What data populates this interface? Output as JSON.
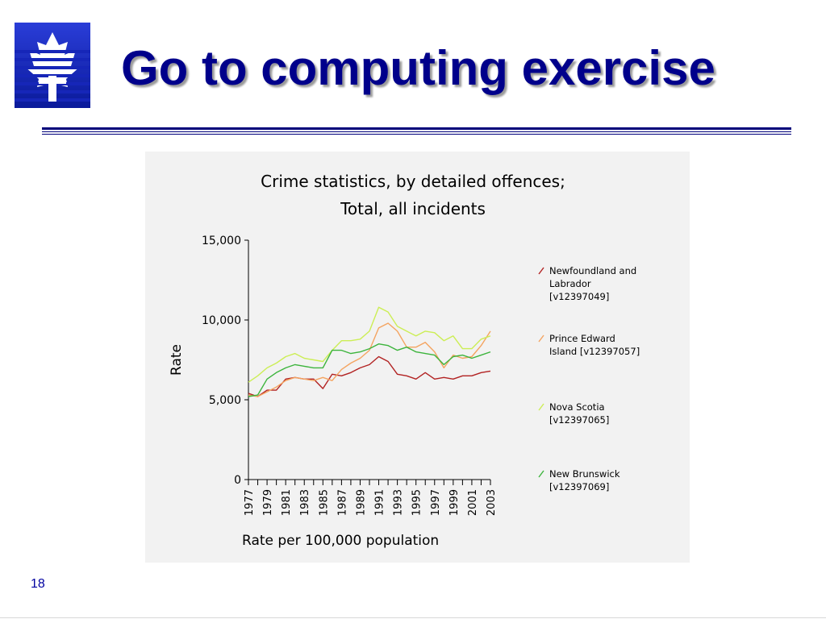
{
  "slide": {
    "title": "Go to computing exercise",
    "page_number": "18",
    "logo_icon": "maple-leaf-logo-icon",
    "title_color": "#00008B"
  },
  "chart_data": {
    "type": "line",
    "title_lines": [
      "Crime statistics, by detailed offences;",
      "Total, all incidents"
    ],
    "ylabel": "Rate",
    "xlabel": "Rate per 100,000 population",
    "ylim": [
      0,
      15000
    ],
    "yticks": [
      0,
      5000,
      10000,
      15000
    ],
    "ytick_labels": [
      "0",
      "5,000",
      "10,000",
      "15,000"
    ],
    "x": [
      1977,
      1978,
      1979,
      1980,
      1981,
      1982,
      1983,
      1984,
      1985,
      1986,
      1987,
      1988,
      1989,
      1990,
      1991,
      1992,
      1993,
      1994,
      1995,
      1996,
      1997,
      1998,
      1999,
      2000,
      2001,
      2002,
      2003
    ],
    "xtick_labels": [
      "1977",
      "1979",
      "1981",
      "1983",
      "1985",
      "1987",
      "1989",
      "1991",
      "1993",
      "1995",
      "1997",
      "1999",
      "2001",
      "2003"
    ],
    "grid": false,
    "legend_position": "right",
    "series": [
      {
        "name_lines": [
          "Newfoundland and",
          "Labrador",
          "[v12397049]"
        ],
        "color": "#b22222",
        "values": [
          5400,
          5200,
          5600,
          5600,
          6300,
          6400,
          6300,
          6300,
          5700,
          6600,
          6500,
          6700,
          7000,
          7200,
          7700,
          7400,
          6600,
          6500,
          6300,
          6700,
          6300,
          6400,
          6300,
          6500,
          6500,
          6700,
          6800
        ]
      },
      {
        "name_lines": [
          "Prince Edward",
          "Island [v12397057]"
        ],
        "color": "#f4a460",
        "values": [
          5300,
          5200,
          5500,
          5800,
          6200,
          6400,
          6300,
          6200,
          6400,
          6200,
          6900,
          7300,
          7600,
          8100,
          9500,
          9800,
          9300,
          8300,
          8300,
          8600,
          8000,
          7000,
          7800,
          7600,
          7700,
          8400,
          9300
        ]
      },
      {
        "name_lines": [
          "Nova Scotia",
          "[v12397065]"
        ],
        "color": "#ccee55",
        "values": [
          6100,
          6500,
          7000,
          7300,
          7700,
          7900,
          7600,
          7500,
          7400,
          8100,
          8700,
          8700,
          8800,
          9300,
          10800,
          10500,
          9600,
          9300,
          9000,
          9300,
          9200,
          8700,
          9000,
          8200,
          8200,
          8800,
          9000
        ]
      },
      {
        "name_lines": [
          "New Brunswick",
          "[v12397069]"
        ],
        "color": "#3cb43c",
        "values": [
          5200,
          5300,
          6300,
          6700,
          7000,
          7200,
          7100,
          7000,
          7000,
          8100,
          8100,
          7900,
          8000,
          8200,
          8500,
          8400,
          8100,
          8300,
          8000,
          7900,
          7800,
          7200,
          7700,
          7800,
          7600,
          7800,
          8000
        ]
      }
    ]
  }
}
